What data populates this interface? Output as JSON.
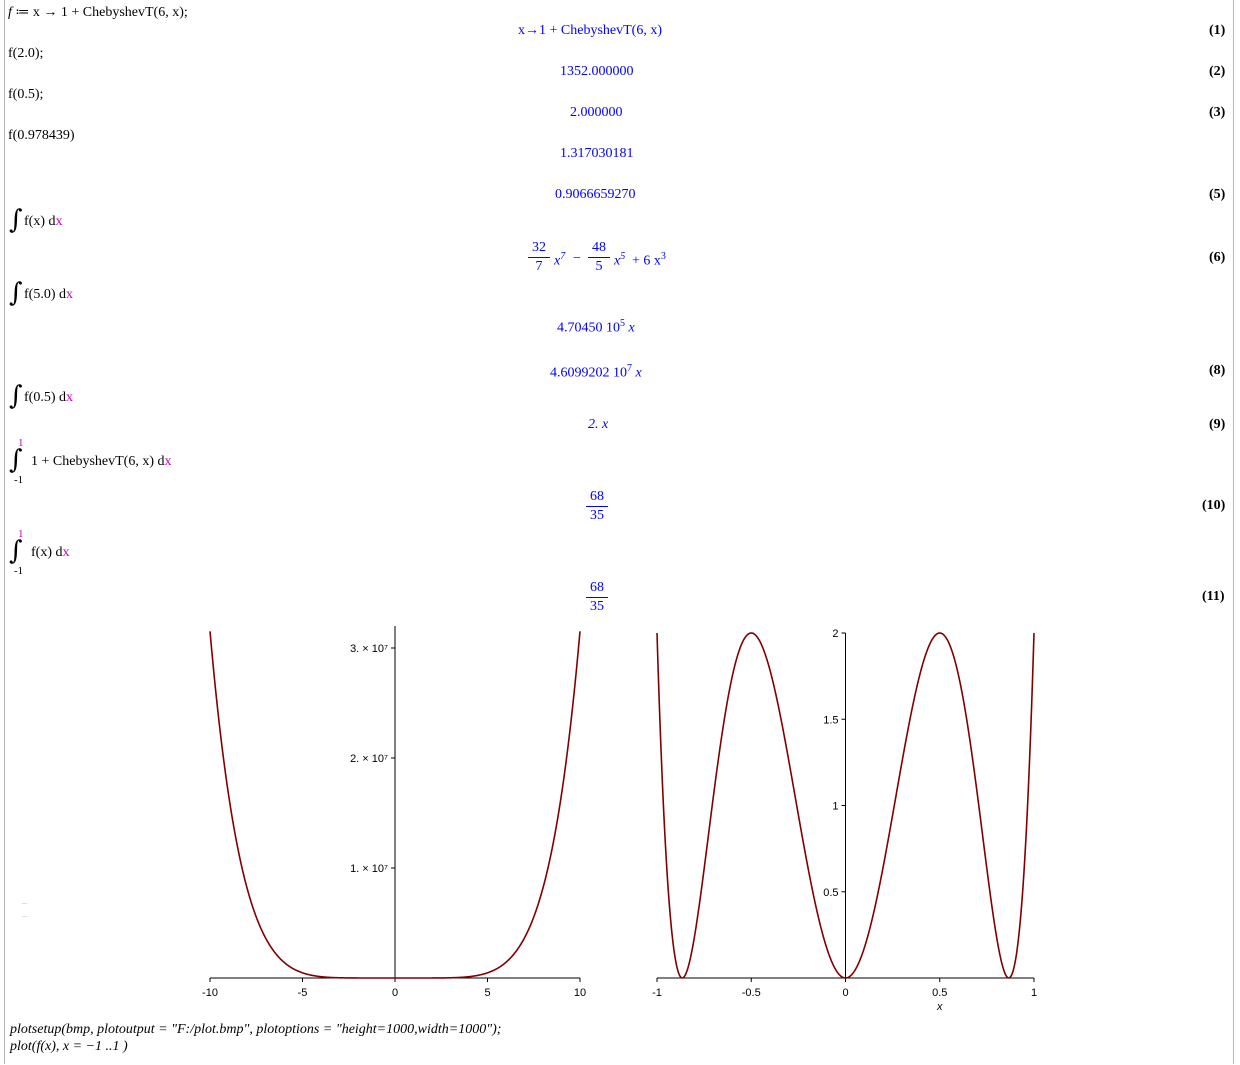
{
  "worksheet": {
    "inputs": {
      "def_lhs": "f",
      "def_op": " ≔ ",
      "def_rhs": "x → 1 + ChebyshevT(6, x);",
      "call1": "f(2.0);",
      "call2": "f(0.5);",
      "call3": "f(0.978439)",
      "int1": "f(x) d",
      "int2": "f(5.0) d",
      "int3": "f(0.5) d",
      "int4": "1 + ChebyshevT(6, x) d",
      "int5": "f(x) d",
      "int_var": "x",
      "upper": "1",
      "lower": "-1",
      "plotsetup": "plotsetup(bmp, plotoutput = \"F:/plot.bmp\", plotoptions = \"height=1000,width=1000\");",
      "plotcmd": "plot(f(x), x = −1 ..1 )"
    },
    "outputs": {
      "o1": "x→1 + ChebyshevT(6, x)",
      "o2": "1352.000000",
      "o3": "2.000000",
      "o4": "1.317030181",
      "o5": "0.9066659270",
      "o6_n1": "32",
      "o6_d1": "7",
      "o6_t1": "x",
      "o6_e1": "7",
      "o6_minus": "−",
      "o6_n2": "48",
      "o6_d2": "5",
      "o6_t2": "x",
      "o6_e2": "5",
      "o6_t3": "+ 6 x",
      "o6_e3": "3",
      "o7_base": "4.70450 10",
      "o7_exp": "5",
      "o7_var": "x",
      "o8_base": "4.6099202 10",
      "o8_exp": "7",
      "o8_var": "x",
      "o9": "2. x",
      "o10_num": "68",
      "o10_den": "35",
      "o11_num": "68",
      "o11_den": "35"
    },
    "labels": {
      "l1": "(1)",
      "l2": "(2)",
      "l3": "(3)",
      "l5": "(5)",
      "l6": "(6)",
      "l8": "(8)",
      "l9": "(9)",
      "l10": "(10)",
      "l11": "(11)"
    }
  },
  "chart_data": [
    {
      "type": "line",
      "title": "",
      "function": "1 + ChebyshevT(6, x)",
      "x_range": [
        -10,
        10
      ],
      "ylim": [
        0,
        32000000
      ],
      "x_ticks": [
        "-10",
        "-5",
        "0",
        "5",
        "10"
      ],
      "y_ticks": [
        "1. × 10⁷",
        "2. × 10⁷",
        "3. × 10⁷"
      ],
      "y_tick_values": [
        10000000,
        20000000,
        30000000
      ],
      "color": "#800000",
      "grid": false
    },
    {
      "type": "line",
      "title": "",
      "function": "1 + ChebyshevT(6, x)",
      "x_range": [
        -1,
        1
      ],
      "ylim": [
        0,
        2
      ],
      "xlabel": "x",
      "x_ticks": [
        "-1",
        "-0.5",
        "0",
        "0.5",
        "1"
      ],
      "y_ticks": [
        "0.5",
        "1",
        "1.5",
        "2"
      ],
      "y_tick_values": [
        0.5,
        1,
        1.5,
        2
      ],
      "color": "#800000",
      "grid": false
    }
  ]
}
